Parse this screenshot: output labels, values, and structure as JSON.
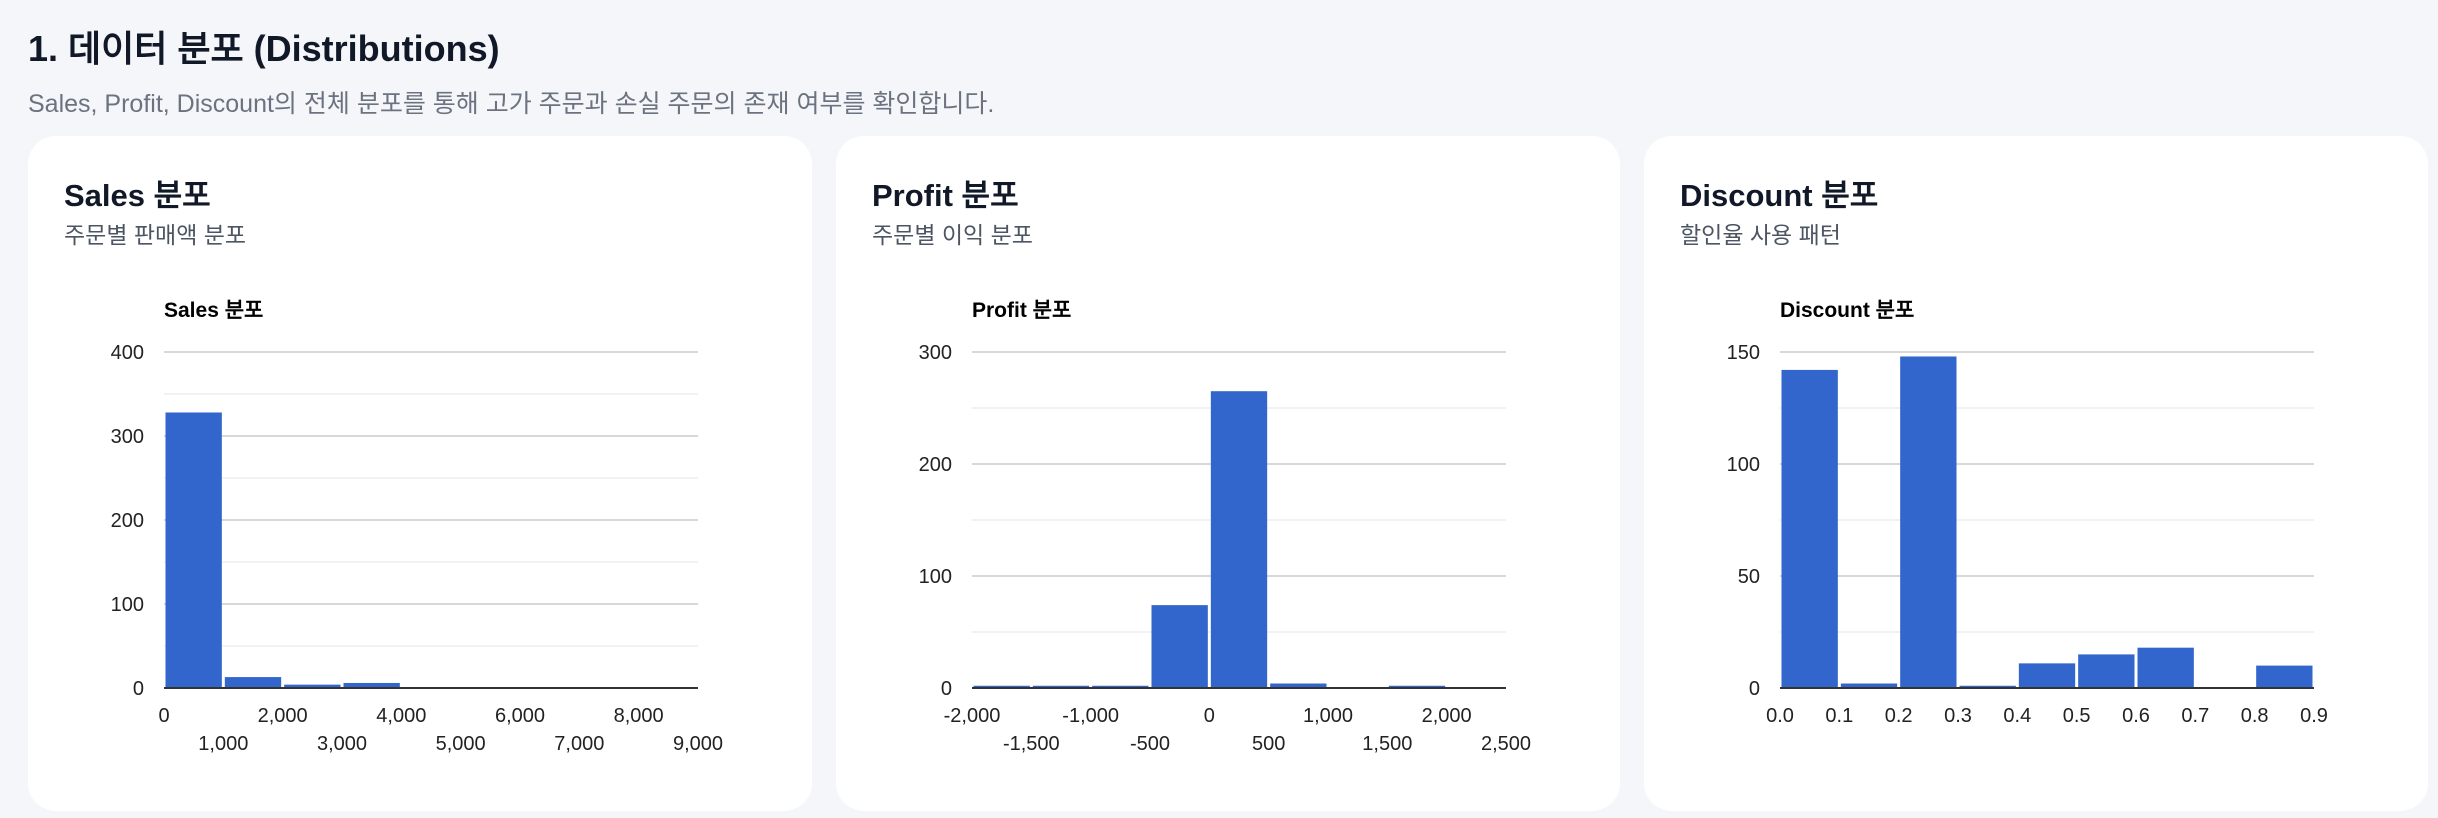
{
  "section": {
    "title": "1. 데이터 분포 (Distributions)",
    "description": "Sales, Profit, Discount의 전체 분포를 통해 고가 주문과 손실 주문의 존재 여부를 확인합니다."
  },
  "cards": [
    {
      "title": "Sales 분포",
      "subtitle": "주문별 판매액 분포"
    },
    {
      "title": "Profit 분포",
      "subtitle": "주문별 이익 분포"
    },
    {
      "title": "Discount 분포",
      "subtitle": "할인율 사용 패턴"
    }
  ],
  "colors": {
    "bar": "#3366cc",
    "grid": "#cccccc",
    "minorGrid": "#e5e5e5",
    "axis": "#333333"
  },
  "chart_data": [
    {
      "type": "bar",
      "title": "Sales 분포",
      "xlim": [
        0,
        9000
      ],
      "ylim": [
        0,
        400
      ],
      "bins": [
        {
          "x0": 0,
          "x1": 1000,
          "count": 328
        },
        {
          "x0": 1000,
          "x1": 2000,
          "count": 13
        },
        {
          "x0": 2000,
          "x1": 3000,
          "count": 4
        },
        {
          "x0": 3000,
          "x1": 4000,
          "count": 6
        }
      ],
      "yticks": [
        0,
        100,
        200,
        300,
        400
      ],
      "ytick_labels": [
        "0",
        "100",
        "200",
        "300",
        "400"
      ],
      "xticks_top": [
        0,
        2000,
        4000,
        6000,
        8000
      ],
      "xtick_labels_top": [
        "0",
        "2,000",
        "4,000",
        "6,000",
        "8,000"
      ],
      "xticks_bottom": [
        1000,
        3000,
        5000,
        7000,
        9000
      ],
      "xtick_labels_bottom": [
        "1,000",
        "3,000",
        "5,000",
        "7,000",
        "9,000"
      ]
    },
    {
      "type": "bar",
      "title": "Profit 분포",
      "xlim": [
        -2000,
        2500
      ],
      "ylim": [
        0,
        300
      ],
      "bins": [
        {
          "x0": -2000,
          "x1": -1500,
          "count": 2
        },
        {
          "x0": -1500,
          "x1": -1000,
          "count": 2
        },
        {
          "x0": -1000,
          "x1": -500,
          "count": 2
        },
        {
          "x0": -500,
          "x1": 0,
          "count": 74
        },
        {
          "x0": 0,
          "x1": 500,
          "count": 265
        },
        {
          "x0": 500,
          "x1": 1000,
          "count": 4
        },
        {
          "x0": 1500,
          "x1": 2000,
          "count": 2
        }
      ],
      "yticks": [
        0,
        100,
        200,
        300
      ],
      "ytick_labels": [
        "0",
        "100",
        "200",
        "300"
      ],
      "xticks_top": [
        -2000,
        -1000,
        0,
        1000,
        2000
      ],
      "xtick_labels_top": [
        "-2,000",
        "-1,000",
        "0",
        "1,000",
        "2,000"
      ],
      "xticks_bottom": [
        -1500,
        -500,
        500,
        1500,
        2500
      ],
      "xtick_labels_bottom": [
        "-1,500",
        "-500",
        "500",
        "1,500",
        "2,500"
      ]
    },
    {
      "type": "bar",
      "title": "Discount 분포",
      "xlim": [
        0,
        0.9
      ],
      "ylim": [
        0,
        150
      ],
      "bins": [
        {
          "x0": 0.0,
          "x1": 0.1,
          "count": 142
        },
        {
          "x0": 0.1,
          "x1": 0.2,
          "count": 2
        },
        {
          "x0": 0.2,
          "x1": 0.3,
          "count": 148
        },
        {
          "x0": 0.3,
          "x1": 0.4,
          "count": 1
        },
        {
          "x0": 0.4,
          "x1": 0.5,
          "count": 11
        },
        {
          "x0": 0.5,
          "x1": 0.6,
          "count": 15
        },
        {
          "x0": 0.6,
          "x1": 0.7,
          "count": 18
        },
        {
          "x0": 0.8,
          "x1": 0.9,
          "count": 10
        }
      ],
      "yticks": [
        0,
        50,
        100,
        150
      ],
      "ytick_labels": [
        "0",
        "50",
        "100",
        "150"
      ],
      "xticks_top": [
        0,
        0.1,
        0.2,
        0.3,
        0.4,
        0.5,
        0.6,
        0.7,
        0.8,
        0.9
      ],
      "xtick_labels_top": [
        "0.0",
        "0.1",
        "0.2",
        "0.3",
        "0.4",
        "0.5",
        "0.6",
        "0.7",
        "0.8",
        "0.9"
      ],
      "xticks_bottom": [],
      "xtick_labels_bottom": []
    }
  ]
}
